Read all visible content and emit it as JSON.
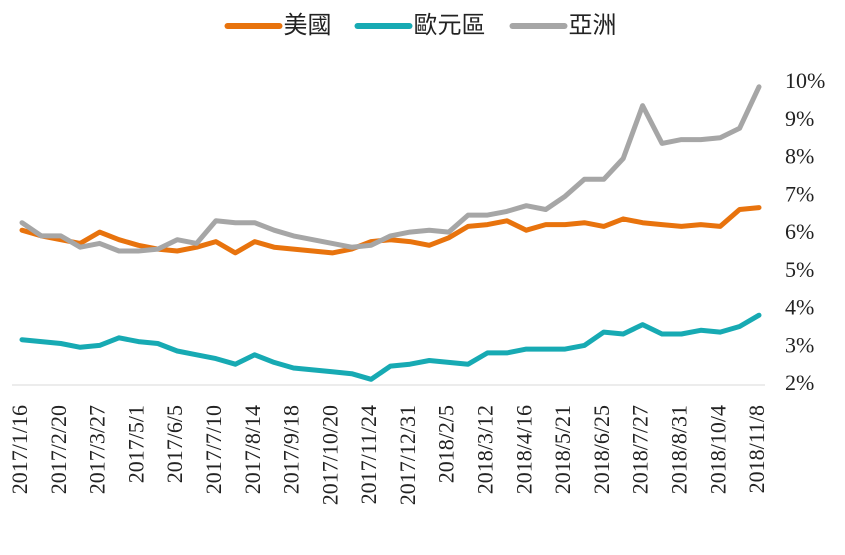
{
  "chart_data": {
    "type": "line",
    "categories": [
      "2017/1/16",
      null,
      "2017/2/20",
      null,
      "2017/3/27",
      null,
      "2017/5/1",
      null,
      "2017/6/5",
      null,
      "2017/7/10",
      null,
      "2017/8/14",
      null,
      "2017/9/18",
      null,
      "2017/10/20",
      null,
      "2017/11/24",
      null,
      "2017/12/31",
      null,
      "2018/2/5",
      null,
      "2018/3/12",
      null,
      "2018/4/16",
      null,
      "2018/5/21",
      null,
      "2018/6/25",
      null,
      "2018/7/27",
      null,
      "2018/8/31",
      null,
      "2018/10/4",
      null,
      "2018/11/8"
    ],
    "series": [
      {
        "name": "美國",
        "color": "#e8730d",
        "values": [
          6.1,
          5.95,
          5.85,
          5.75,
          6.05,
          5.85,
          5.7,
          5.6,
          5.55,
          5.65,
          5.8,
          5.5,
          5.8,
          5.65,
          5.6,
          5.55,
          5.5,
          5.6,
          5.8,
          5.85,
          5.8,
          5.7,
          5.9,
          6.2,
          6.25,
          6.35,
          6.1,
          6.25,
          6.25,
          6.3,
          6.2,
          6.4,
          6.3,
          6.25,
          6.2,
          6.25,
          6.2,
          6.65,
          6.7
        ]
      },
      {
        "name": "歐元區",
        "color": "#17aab3",
        "values": [
          3.2,
          3.15,
          3.1,
          3.0,
          3.05,
          3.25,
          3.15,
          3.1,
          2.9,
          2.8,
          2.7,
          2.55,
          2.8,
          2.6,
          2.45,
          2.4,
          2.35,
          2.3,
          2.15,
          2.5,
          2.55,
          2.65,
          2.6,
          2.55,
          2.85,
          2.85,
          2.95,
          2.95,
          2.95,
          3.05,
          3.4,
          3.35,
          3.6,
          3.35,
          3.35,
          3.45,
          3.4,
          3.55,
          3.85
        ]
      },
      {
        "name": "亞洲",
        "color": "#a6a6a6",
        "values": [
          6.3,
          5.95,
          5.95,
          5.65,
          5.75,
          5.55,
          5.55,
          5.6,
          5.85,
          5.75,
          6.35,
          6.3,
          6.3,
          6.1,
          5.95,
          5.85,
          5.75,
          5.65,
          5.7,
          5.95,
          6.05,
          6.1,
          6.05,
          6.5,
          6.5,
          6.6,
          6.75,
          6.65,
          7.0,
          7.45,
          7.45,
          8.0,
          9.4,
          8.4,
          8.5,
          8.5,
          8.55,
          8.8,
          9.9
        ]
      }
    ],
    "ylim": [
      2,
      10
    ],
    "yticks": [
      {
        "value": 2,
        "label": "2%"
      },
      {
        "value": 3,
        "label": "3%"
      },
      {
        "value": 4,
        "label": "4%"
      },
      {
        "value": 5,
        "label": "5%"
      },
      {
        "value": 6,
        "label": "6%"
      },
      {
        "value": 7,
        "label": "7%"
      },
      {
        "value": 8,
        "label": "8%"
      },
      {
        "value": 9,
        "label": "9%"
      },
      {
        "value": 10,
        "label": "10%"
      }
    ],
    "y_axis_side": "right",
    "legend": "top"
  }
}
